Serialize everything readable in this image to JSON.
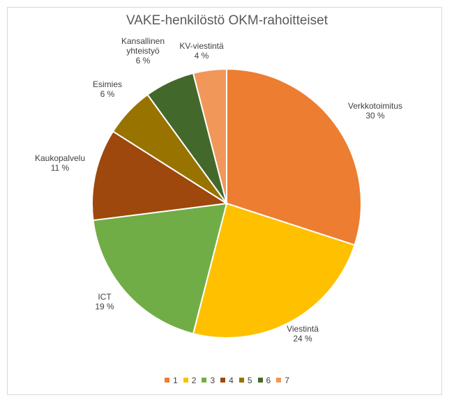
{
  "chart_data": {
    "type": "pie",
    "title": "VAKE-henkilöstö OKM-rahoitteiset",
    "slices": [
      {
        "label_lines": [
          "Verkkotoimitus"
        ],
        "value": 30,
        "value_label": "30 %",
        "legend": "1",
        "color": "#ED7D31"
      },
      {
        "label_lines": [
          "Viestintä"
        ],
        "value": 24,
        "value_label": "24 %",
        "legend": "2",
        "color": "#FFC000"
      },
      {
        "label_lines": [
          "ICT"
        ],
        "value": 19,
        "value_label": "19 %",
        "legend": "3",
        "color": "#70AD47"
      },
      {
        "label_lines": [
          "Kaukopalvelu"
        ],
        "value": 11,
        "value_label": "11 %",
        "legend": "4",
        "color": "#9E480E"
      },
      {
        "label_lines": [
          "Esimies"
        ],
        "value": 6,
        "value_label": "6 %",
        "legend": "5",
        "color": "#997300"
      },
      {
        "label_lines": [
          "Kansallinen",
          "yhteistyö"
        ],
        "value": 6,
        "value_label": "6 %",
        "legend": "6",
        "color": "#43682B"
      },
      {
        "label_lines": [
          "KV-viestintä"
        ],
        "value": 4,
        "value_label": "4 %",
        "legend": "7",
        "color": "#F1975A"
      }
    ],
    "legend_position": "bottom"
  }
}
